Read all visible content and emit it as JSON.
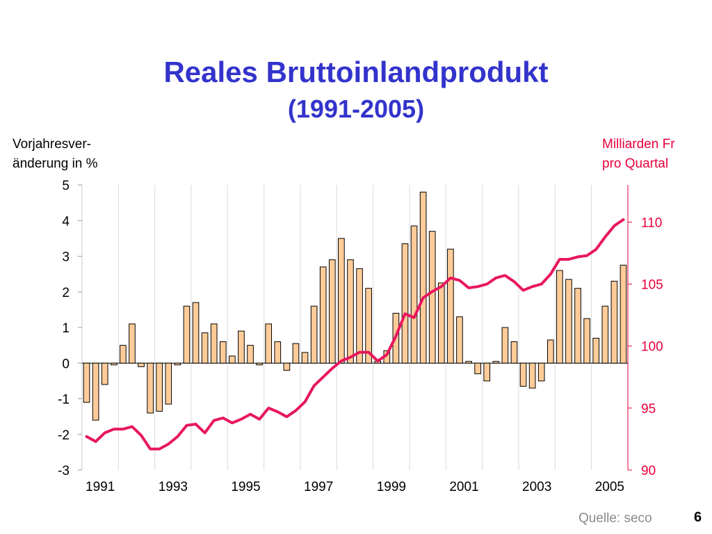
{
  "title": "Reales Bruttoinlandprodukt",
  "subtitle": "(1991-2005)",
  "left_axis_title": [
    "Vorjahresver-",
    "änderung in %"
  ],
  "right_axis_title": [
    "Milliarden Fr",
    "pro Quartal"
  ],
  "source": "Quelle: seco",
  "page_number": "6",
  "colors": {
    "title": "#3333cc",
    "bar_fill": "#ffcc99",
    "bar_stroke": "#000000",
    "line": "#e8175d",
    "right_axis": "#e8003c",
    "grid": "#d9d9d9"
  },
  "chart_data": {
    "type": "bar+line",
    "x_tick_labels": [
      "1991",
      "1993",
      "1995",
      "1997",
      "1999",
      "2001",
      "2003",
      "2005"
    ],
    "y_left": {
      "ticks": [
        5,
        4,
        3,
        2,
        1,
        0,
        -1,
        -2,
        -3
      ],
      "ylim": [
        -3,
        5
      ]
    },
    "y_right": {
      "ticks": [
        110,
        105,
        100,
        95,
        90
      ],
      "ylim": [
        90,
        113
      ]
    },
    "grid": "vertical per year",
    "series": [
      {
        "type": "bar",
        "axis": "left",
        "values": [
          -1.1,
          -1.6,
          -0.6,
          -0.05,
          0.5,
          1.1,
          -0.1,
          -1.4,
          -1.35,
          -1.15,
          -0.05,
          1.6,
          1.7,
          0.85,
          1.1,
          0.6,
          0.2,
          0.9,
          0.5,
          -0.05,
          1.1,
          0.6,
          -0.2,
          0.55,
          0.3,
          1.6,
          2.7,
          2.9,
          3.5,
          2.9,
          2.65,
          2.1,
          0.05,
          0.35,
          1.4,
          3.35,
          3.85,
          4.8,
          3.7,
          2.25,
          3.2,
          1.3,
          0.05,
          -0.3,
          -0.5,
          0.05,
          1.0,
          0.6,
          -0.65,
          -0.7,
          -0.5,
          0.65,
          2.6,
          2.35,
          2.1,
          1.25,
          0.7,
          1.6,
          2.3,
          2.75
        ]
      },
      {
        "type": "line",
        "axis": "right",
        "values": [
          92.7,
          92.3,
          93.0,
          93.3,
          93.3,
          93.5,
          92.8,
          91.7,
          91.7,
          92.1,
          92.7,
          93.6,
          93.7,
          93.0,
          94.0,
          94.2,
          93.8,
          94.1,
          94.5,
          94.1,
          95.0,
          94.7,
          94.3,
          94.8,
          95.5,
          96.8,
          97.5,
          98.2,
          98.8,
          99.1,
          99.5,
          99.5,
          98.8,
          99.3,
          100.8,
          102.6,
          102.3,
          103.9,
          104.4,
          104.8,
          105.5,
          105.3,
          104.7,
          104.8,
          105.0,
          105.5,
          105.7,
          105.2,
          104.5,
          104.8,
          105.0,
          105.8,
          107.0,
          107.0,
          107.2,
          107.3,
          107.8,
          108.8,
          109.7,
          110.2
        ]
      }
    ]
  }
}
